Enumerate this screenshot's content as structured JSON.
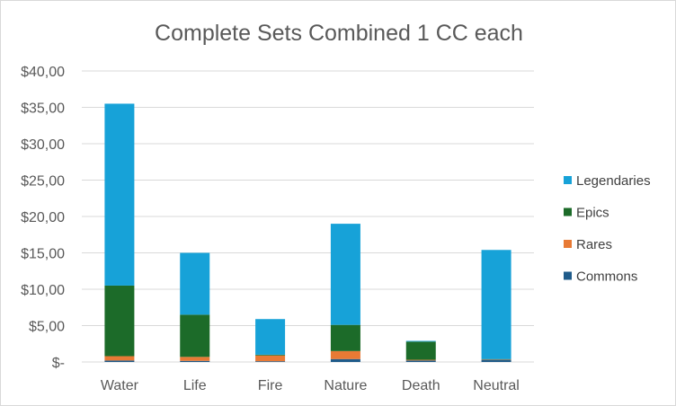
{
  "chart_data": {
    "type": "bar",
    "stacked": true,
    "title": "Complete Sets Combined 1 CC each",
    "categories": [
      "Water",
      "Life",
      "Fire",
      "Nature",
      "Death",
      "Neutral"
    ],
    "y_ticks": [
      "$-",
      "$5,00",
      "$10,00",
      "$15,00",
      "$20,00",
      "$25,00",
      "$30,00",
      "$35,00",
      "$40,00"
    ],
    "ylim": [
      0,
      40
    ],
    "grid": true,
    "legend_position": "right",
    "series": [
      {
        "name": "Commons",
        "color": "#1f5b8a",
        "values": [
          0.2,
          0.15,
          0.1,
          0.4,
          0.2,
          0.3
        ]
      },
      {
        "name": "Rares",
        "color": "#e87a35",
        "values": [
          0.6,
          0.55,
          0.8,
          1.1,
          0.1,
          0.05
        ]
      },
      {
        "name": "Epics",
        "color": "#1c6b29",
        "values": [
          9.7,
          5.8,
          0.1,
          3.6,
          2.5,
          0.05
        ]
      },
      {
        "name": "Legendaries",
        "color": "#17a2d8",
        "values": [
          25.0,
          8.5,
          4.9,
          13.9,
          0.1,
          15.0
        ]
      }
    ],
    "legend_order": [
      "Legendaries",
      "Epics",
      "Rares",
      "Commons"
    ]
  }
}
